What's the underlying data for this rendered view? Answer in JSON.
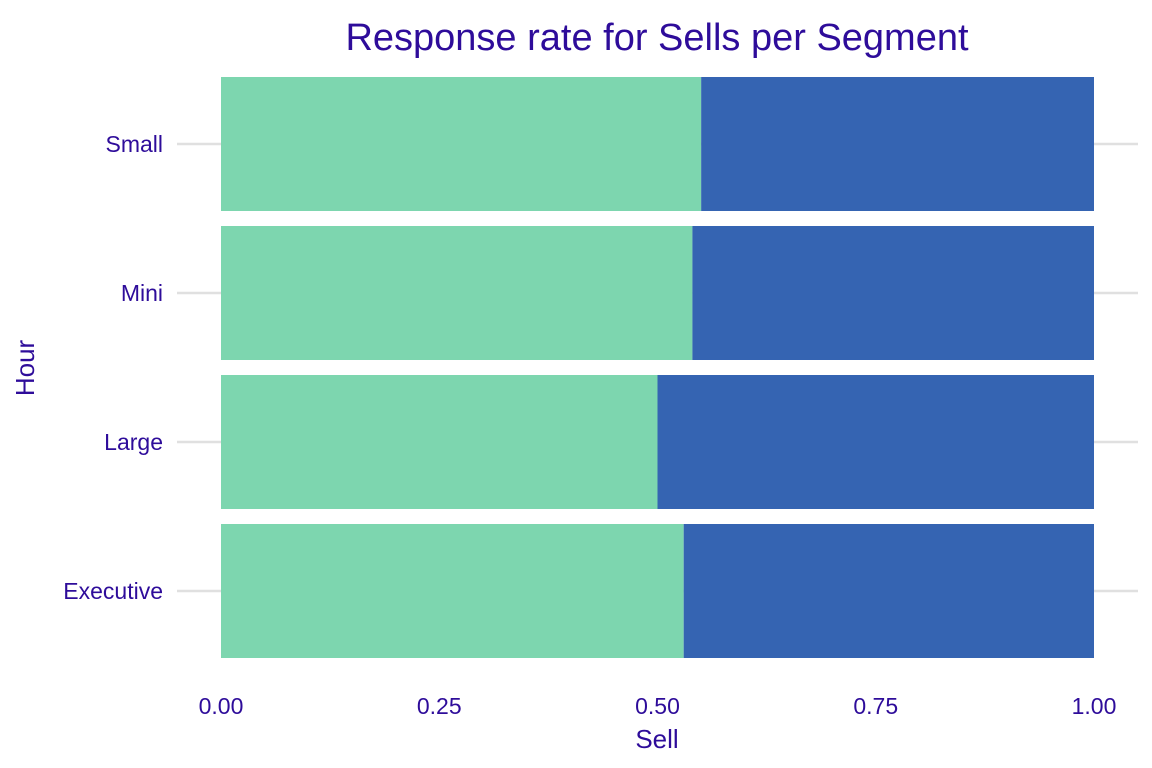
{
  "colors": {
    "text": "#2e0c9a",
    "grid": "#e0e0e0",
    "series_first": "#7dd6af",
    "series_second": "#3564b2",
    "background": "#ffffff"
  },
  "chart_data": {
    "type": "bar",
    "orientation": "horizontal",
    "stacked": true,
    "title": "Response rate for Sells per Segment",
    "xlabel": "Sell",
    "ylabel": "Hour",
    "categories": [
      "Small",
      "Mini",
      "Large",
      "Executive"
    ],
    "series": [
      {
        "values": [
          0.55,
          0.54,
          0.5,
          0.53
        ]
      },
      {
        "values": [
          0.45,
          0.46,
          0.5,
          0.47
        ]
      }
    ],
    "xlim": [
      0,
      1
    ],
    "xticks": [
      0,
      0.25,
      0.5,
      0.75,
      1
    ],
    "xtick_labels": [
      "0.00",
      "0.25",
      "0.50",
      "0.75",
      "1.00"
    ],
    "grid": "horizontal lines at categories",
    "legend": "none"
  }
}
